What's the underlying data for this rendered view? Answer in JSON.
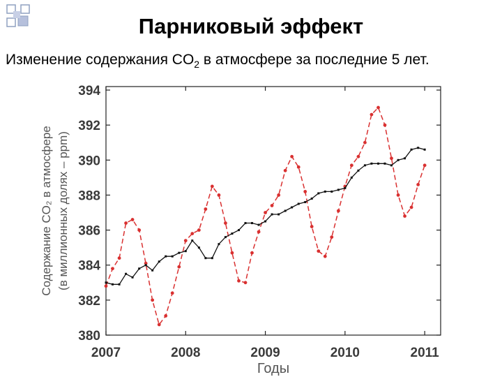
{
  "slide": {
    "title": "Парниковый эффект",
    "subtitle_main": "Изменение содержания CO",
    "subtitle_sub": "2",
    "subtitle_rest": " в атмосфере за последние 5 лет."
  },
  "chart_data": {
    "type": "line",
    "title": "",
    "xlabel": "Годы",
    "ylabel_line1": "Содержание CO₂ в атмосфере",
    "ylabel_line2": "(в миллионных долях – ppm)",
    "xlim": [
      2007,
      2011.2
    ],
    "ylim": [
      380,
      394.2
    ],
    "x_ticks": [
      2007,
      2008,
      2009,
      2010,
      2011
    ],
    "x_tick_labels": [
      "2007",
      "2008",
      "2009",
      "2010",
      "2011"
    ],
    "y_ticks": [
      380,
      382,
      384,
      386,
      388,
      390,
      392,
      394
    ],
    "y_tick_labels": [
      "380",
      "382",
      "384",
      "386",
      "388",
      "390",
      "392",
      "394"
    ],
    "colors": {
      "monthly": "#d93030",
      "trend": "#111111"
    },
    "series": [
      {
        "name": "monthly",
        "style": "dashed",
        "x": [
          2007.0,
          2007.083,
          2007.167,
          2007.25,
          2007.333,
          2007.417,
          2007.5,
          2007.583,
          2007.667,
          2007.75,
          2007.833,
          2007.917,
          2008.0,
          2008.083,
          2008.167,
          2008.25,
          2008.333,
          2008.417,
          2008.5,
          2008.583,
          2008.667,
          2008.75,
          2008.833,
          2008.917,
          2009.0,
          2009.083,
          2009.167,
          2009.25,
          2009.333,
          2009.417,
          2009.5,
          2009.583,
          2009.667,
          2009.75,
          2009.833,
          2009.917,
          2010.0,
          2010.083,
          2010.167,
          2010.25,
          2010.333,
          2010.417,
          2010.5,
          2010.583,
          2010.667,
          2010.75,
          2010.833,
          2010.917,
          2011.0
        ],
        "values": [
          382.8,
          383.8,
          384.4,
          386.4,
          386.6,
          386.0,
          384.1,
          382.0,
          380.6,
          381.1,
          382.4,
          383.9,
          385.4,
          385.8,
          386.0,
          387.2,
          388.5,
          388.0,
          386.4,
          384.7,
          383.1,
          383.0,
          384.7,
          385.9,
          387.0,
          387.4,
          388.0,
          389.4,
          390.2,
          389.6,
          388.2,
          386.2,
          384.8,
          384.5,
          385.6,
          387.1,
          388.5,
          389.7,
          390.2,
          391.0,
          392.6,
          393.0,
          392.0,
          390.1,
          388.0,
          386.8,
          387.3,
          388.6,
          389.7
        ]
      },
      {
        "name": "trend",
        "style": "solid",
        "x": [
          2007.0,
          2007.083,
          2007.167,
          2007.25,
          2007.333,
          2007.417,
          2007.5,
          2007.583,
          2007.667,
          2007.75,
          2007.833,
          2007.917,
          2008.0,
          2008.083,
          2008.167,
          2008.25,
          2008.333,
          2008.417,
          2008.5,
          2008.583,
          2008.667,
          2008.75,
          2008.833,
          2008.917,
          2009.0,
          2009.083,
          2009.167,
          2009.25,
          2009.333,
          2009.417,
          2009.5,
          2009.583,
          2009.667,
          2009.75,
          2009.833,
          2009.917,
          2010.0,
          2010.083,
          2010.167,
          2010.25,
          2010.333,
          2010.417,
          2010.5,
          2010.583,
          2010.667,
          2010.75,
          2010.833,
          2010.917,
          2011.0
        ],
        "values": [
          383.0,
          382.9,
          382.9,
          383.5,
          383.3,
          383.8,
          384.0,
          383.7,
          384.2,
          384.5,
          384.5,
          384.7,
          384.8,
          385.4,
          385.0,
          384.4,
          384.4,
          385.2,
          385.6,
          385.8,
          386.0,
          386.4,
          386.4,
          386.3,
          386.5,
          386.9,
          386.9,
          387.1,
          387.3,
          387.5,
          387.6,
          387.8,
          388.1,
          388.2,
          388.2,
          388.3,
          388.4,
          389.0,
          389.4,
          389.7,
          389.8,
          389.8,
          389.8,
          389.7,
          390.0,
          390.1,
          390.6,
          390.7,
          390.6
        ]
      }
    ]
  }
}
